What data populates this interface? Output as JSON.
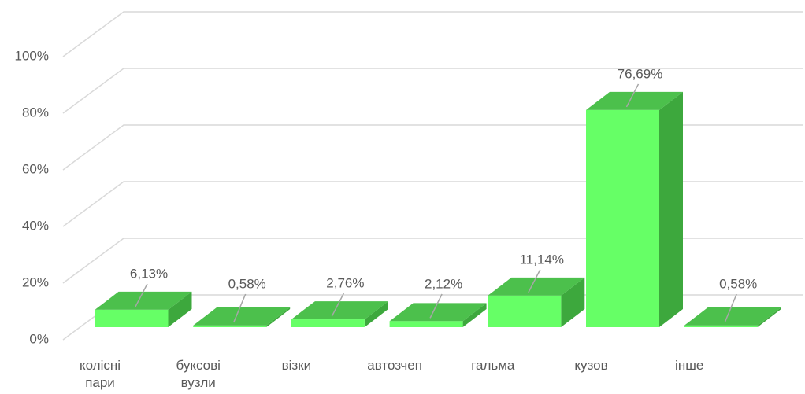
{
  "chart_data": {
    "type": "bar3d",
    "categories": [
      "колісні пари",
      "буксові вузли",
      "візки",
      "автозчеп",
      "гальма",
      "кузов",
      "інше"
    ],
    "values": [
      6.13,
      0.58,
      2.76,
      2.12,
      11.14,
      76.69,
      0.58
    ],
    "value_labels": [
      "6,13%",
      "0,58%",
      "2,76%",
      "2,12%",
      "11,14%",
      "76,69%",
      "0,58%"
    ],
    "color": "#66ff66",
    "ylim": [
      0,
      100
    ],
    "yticks": [
      {
        "value": 0,
        "label": "0%"
      },
      {
        "value": 20,
        "label": "20%"
      },
      {
        "value": 40,
        "label": "40%"
      },
      {
        "value": 60,
        "label": "60%"
      },
      {
        "value": 80,
        "label": "80%"
      },
      {
        "value": 100,
        "label": "100%"
      }
    ],
    "grid": true
  }
}
